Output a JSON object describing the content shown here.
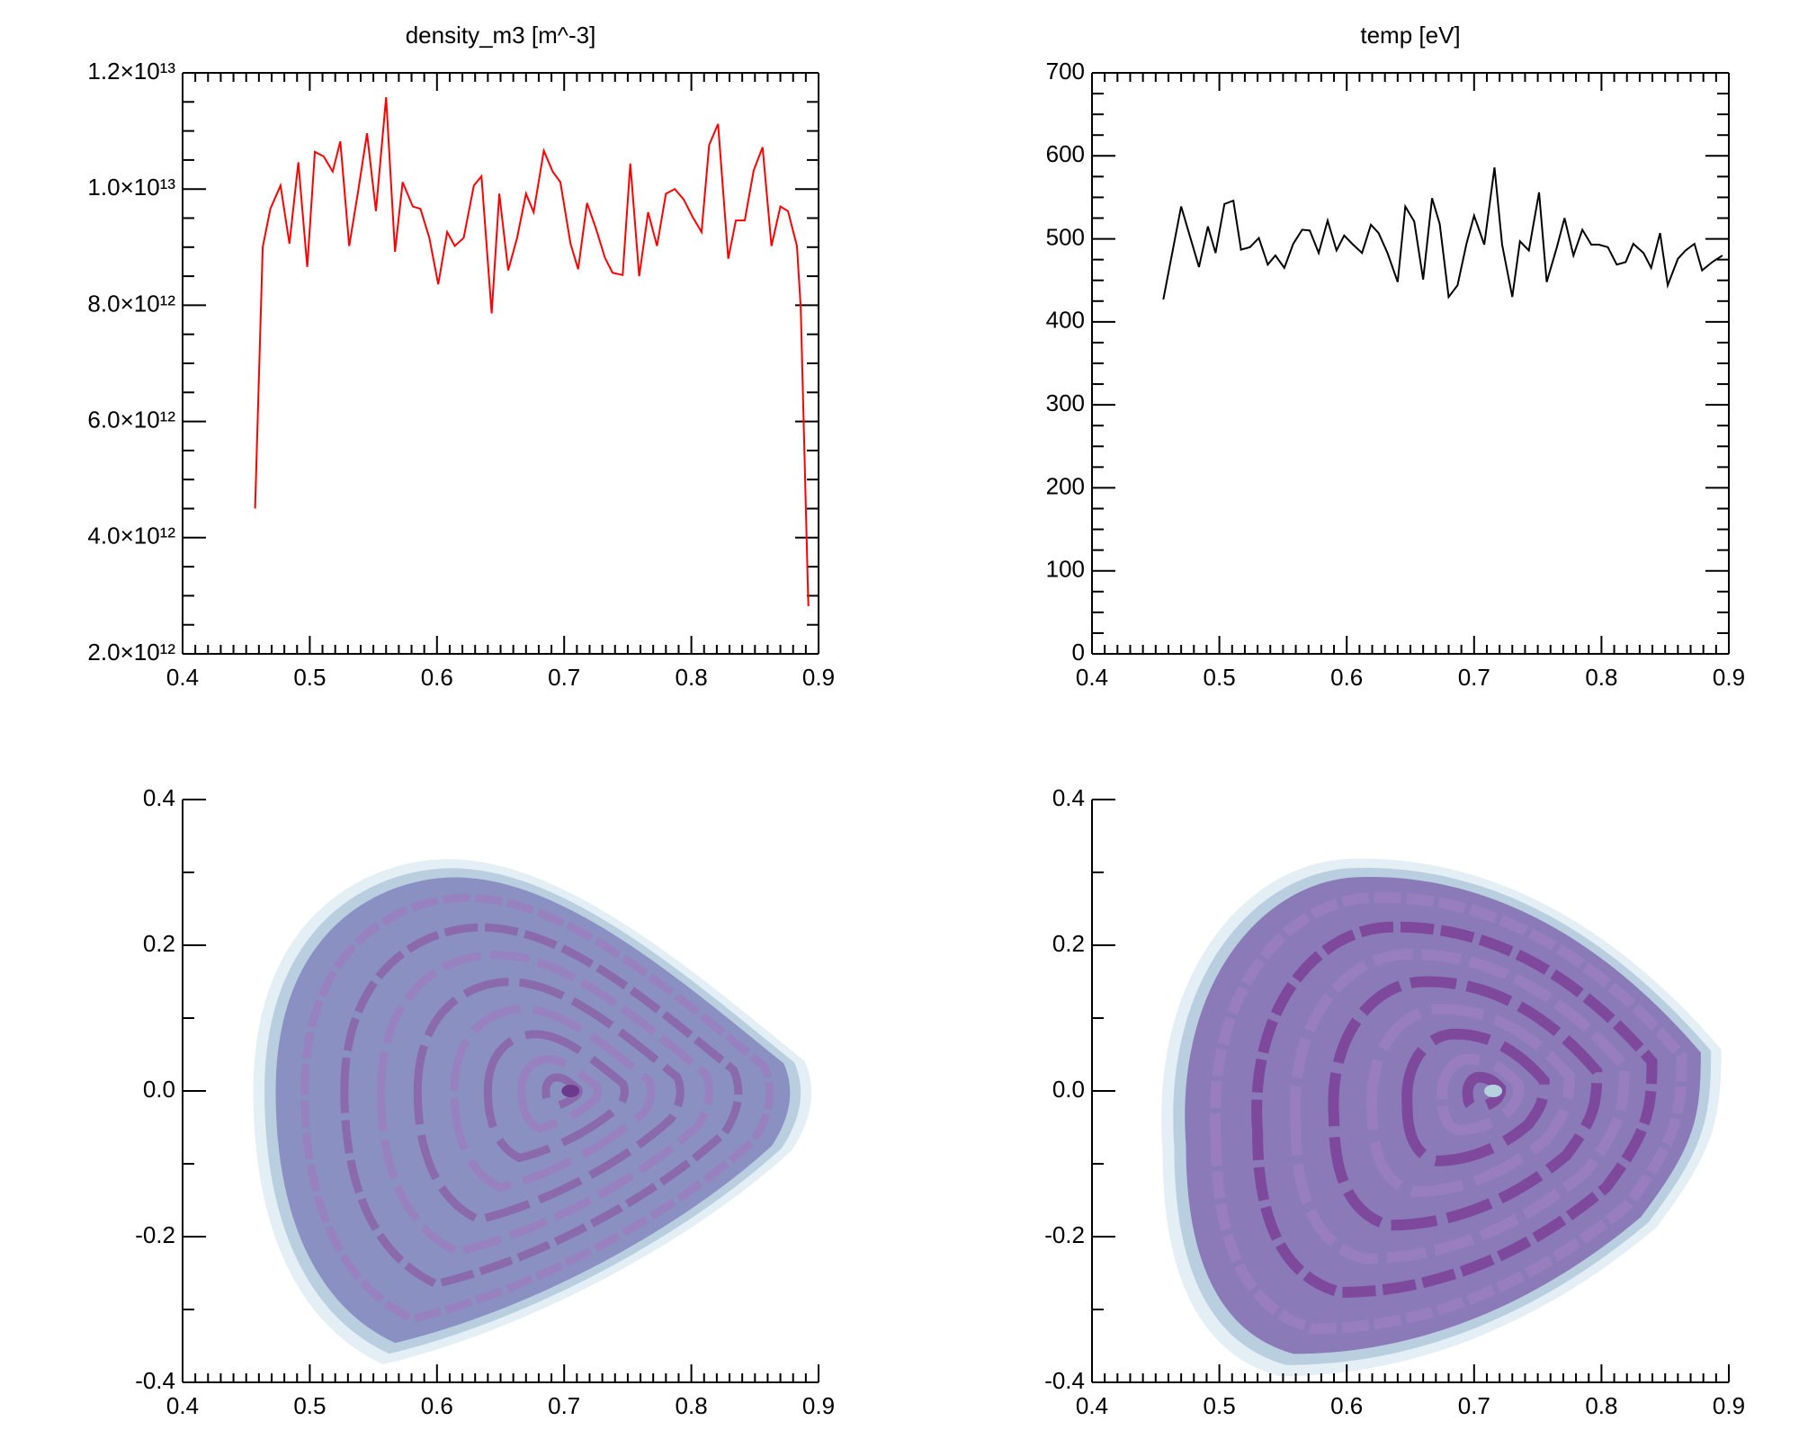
{
  "chart_data": [
    {
      "type": "line",
      "title": "density_m3 [m^-3]",
      "color": "#ff0000",
      "x": [
        0.457,
        0.463,
        0.469,
        0.477,
        0.484,
        0.491,
        0.498,
        0.504,
        0.511,
        0.518,
        0.524,
        0.531,
        0.538,
        0.545,
        0.552,
        0.56,
        0.567,
        0.573,
        0.581,
        0.587,
        0.594,
        0.601,
        0.608,
        0.614,
        0.621,
        0.629,
        0.635,
        0.643,
        0.649,
        0.656,
        0.663,
        0.67,
        0.676,
        0.684,
        0.691,
        0.697,
        0.705,
        0.711,
        0.718,
        0.725,
        0.732,
        0.738,
        0.746,
        0.752,
        0.759,
        0.766,
        0.773,
        0.78,
        0.787,
        0.794,
        0.801,
        0.808,
        0.814,
        0.821,
        0.829,
        0.835,
        0.842,
        0.849,
        0.856,
        0.863,
        0.87,
        0.876,
        0.883,
        0.886,
        0.892
      ],
      "values": [
        4500000000000.0,
        9000000000000.0,
        9660000000000.0,
        10060000000000.0,
        9060000000000.0,
        10460000000000.0,
        8660000000000.0,
        10640000000000.0,
        10560000000000.0,
        10300000000000.0,
        10820000000000.0,
        9020000000000.0,
        9960000000000.0,
        10960000000000.0,
        9620000000000.0,
        11580000000000.0,
        8920000000000.0,
        10120000000000.0,
        9700000000000.0,
        9660000000000.0,
        9160000000000.0,
        8360000000000.0,
        9260000000000.0,
        9020000000000.0,
        9160000000000.0,
        10060000000000.0,
        10220000000000.0,
        7860000000000.0,
        9920000000000.0,
        8600000000000.0,
        9160000000000.0,
        9920000000000.0,
        9600000000000.0,
        10660000000000.0,
        10300000000000.0,
        10120000000000.0,
        9060000000000.0,
        8620000000000.0,
        9760000000000.0,
        9320000000000.0,
        8820000000000.0,
        8560000000000.0,
        8520000000000.0,
        10440000000000.0,
        8500000000000.0,
        9600000000000.0,
        9020000000000.0,
        9920000000000.0,
        10000000000000.0,
        9820000000000.0,
        9520000000000.0,
        9260000000000.0,
        10760000000000.0,
        11120000000000.0,
        8800000000000.0,
        9460000000000.0,
        9460000000000.0,
        10320000000000.0,
        10720000000000.0,
        9020000000000.0,
        9700000000000.0,
        9620000000000.0,
        9020000000000.0,
        7960000000000.0,
        2820000000000.0
      ],
      "xlim": [
        0.4,
        0.9
      ],
      "ylim": [
        2000000000000.0,
        12000000000000.0
      ],
      "xticks": [
        0.4,
        0.5,
        0.6,
        0.7,
        0.8,
        0.9
      ],
      "yticks": [
        {
          "value": 2000000000000.0,
          "label": "2.0×10¹²"
        },
        {
          "value": 4000000000000.0,
          "label": "4.0×10¹²"
        },
        {
          "value": 6000000000000.0,
          "label": "6.0×10¹²"
        },
        {
          "value": 8000000000000.0,
          "label": "8.0×10¹²"
        },
        {
          "value": 10000000000000.0,
          "label": "1.0×10¹³"
        },
        {
          "value": 12000000000000.0,
          "label": "1.2×10¹³"
        }
      ]
    },
    {
      "type": "line",
      "title": "temp [eV]",
      "color": "#000000",
      "x": [
        0.456,
        0.47,
        0.484,
        0.491,
        0.497,
        0.504,
        0.511,
        0.517,
        0.524,
        0.531,
        0.538,
        0.544,
        0.551,
        0.558,
        0.565,
        0.571,
        0.578,
        0.585,
        0.592,
        0.598,
        0.605,
        0.612,
        0.619,
        0.625,
        0.632,
        0.64,
        0.646,
        0.653,
        0.66,
        0.667,
        0.673,
        0.68,
        0.687,
        0.694,
        0.7,
        0.708,
        0.716,
        0.722,
        0.73,
        0.736,
        0.743,
        0.751,
        0.757,
        0.765,
        0.771,
        0.778,
        0.785,
        0.792,
        0.798,
        0.805,
        0.812,
        0.819,
        0.825,
        0.833,
        0.839,
        0.846,
        0.852,
        0.86,
        0.866,
        0.873,
        0.879,
        0.887,
        0.895
      ],
      "values": [
        427,
        539,
        466,
        515,
        483,
        542,
        546,
        487,
        490,
        501,
        469,
        480,
        465,
        494,
        511,
        510,
        483,
        522,
        486,
        504,
        493,
        483,
        517,
        507,
        483,
        448,
        539,
        521,
        451,
        549,
        518,
        430,
        444,
        494,
        528,
        493,
        586,
        493,
        430,
        497,
        486,
        556,
        448,
        490,
        525,
        480,
        511,
        493,
        493,
        490,
        469,
        472,
        494,
        483,
        465,
        507,
        444,
        476,
        486,
        494,
        462,
        472,
        480
      ],
      "xlim": [
        0.4,
        0.9
      ],
      "ylim": [
        0,
        700
      ],
      "xticks": [
        0.4,
        0.5,
        0.6,
        0.7,
        0.8,
        0.9
      ],
      "yticks": [
        0,
        100,
        200,
        300,
        400,
        500,
        600,
        700
      ]
    },
    {
      "type": "contour",
      "xlim": [
        0.4,
        0.9
      ],
      "ylim": [
        -0.4,
        0.4
      ],
      "xticks": [
        0.4,
        0.5,
        0.6,
        0.7,
        0.8,
        0.9
      ],
      "yticks": [
        {
          "value": -0.4,
          "label": "-0.4"
        },
        {
          "value": -0.2,
          "label": "-0.2"
        },
        {
          "value": 0,
          "label": "0.0"
        },
        {
          "value": 0.2,
          "label": "0.2"
        },
        {
          "value": 0.4,
          "label": "0.4"
        }
      ]
    },
    {
      "type": "contour",
      "xlim": [
        0.4,
        0.9
      ],
      "ylim": [
        -0.4,
        0.4
      ],
      "xticks": [
        0.4,
        0.5,
        0.6,
        0.7,
        0.8,
        0.9
      ],
      "yticks": [
        {
          "value": -0.4,
          "label": "-0.4"
        },
        {
          "value": -0.2,
          "label": "-0.2"
        },
        {
          "value": 0,
          "label": "0.0"
        },
        {
          "value": 0.2,
          "label": "0.2"
        },
        {
          "value": 0.4,
          "label": "0.4"
        }
      ]
    }
  ]
}
